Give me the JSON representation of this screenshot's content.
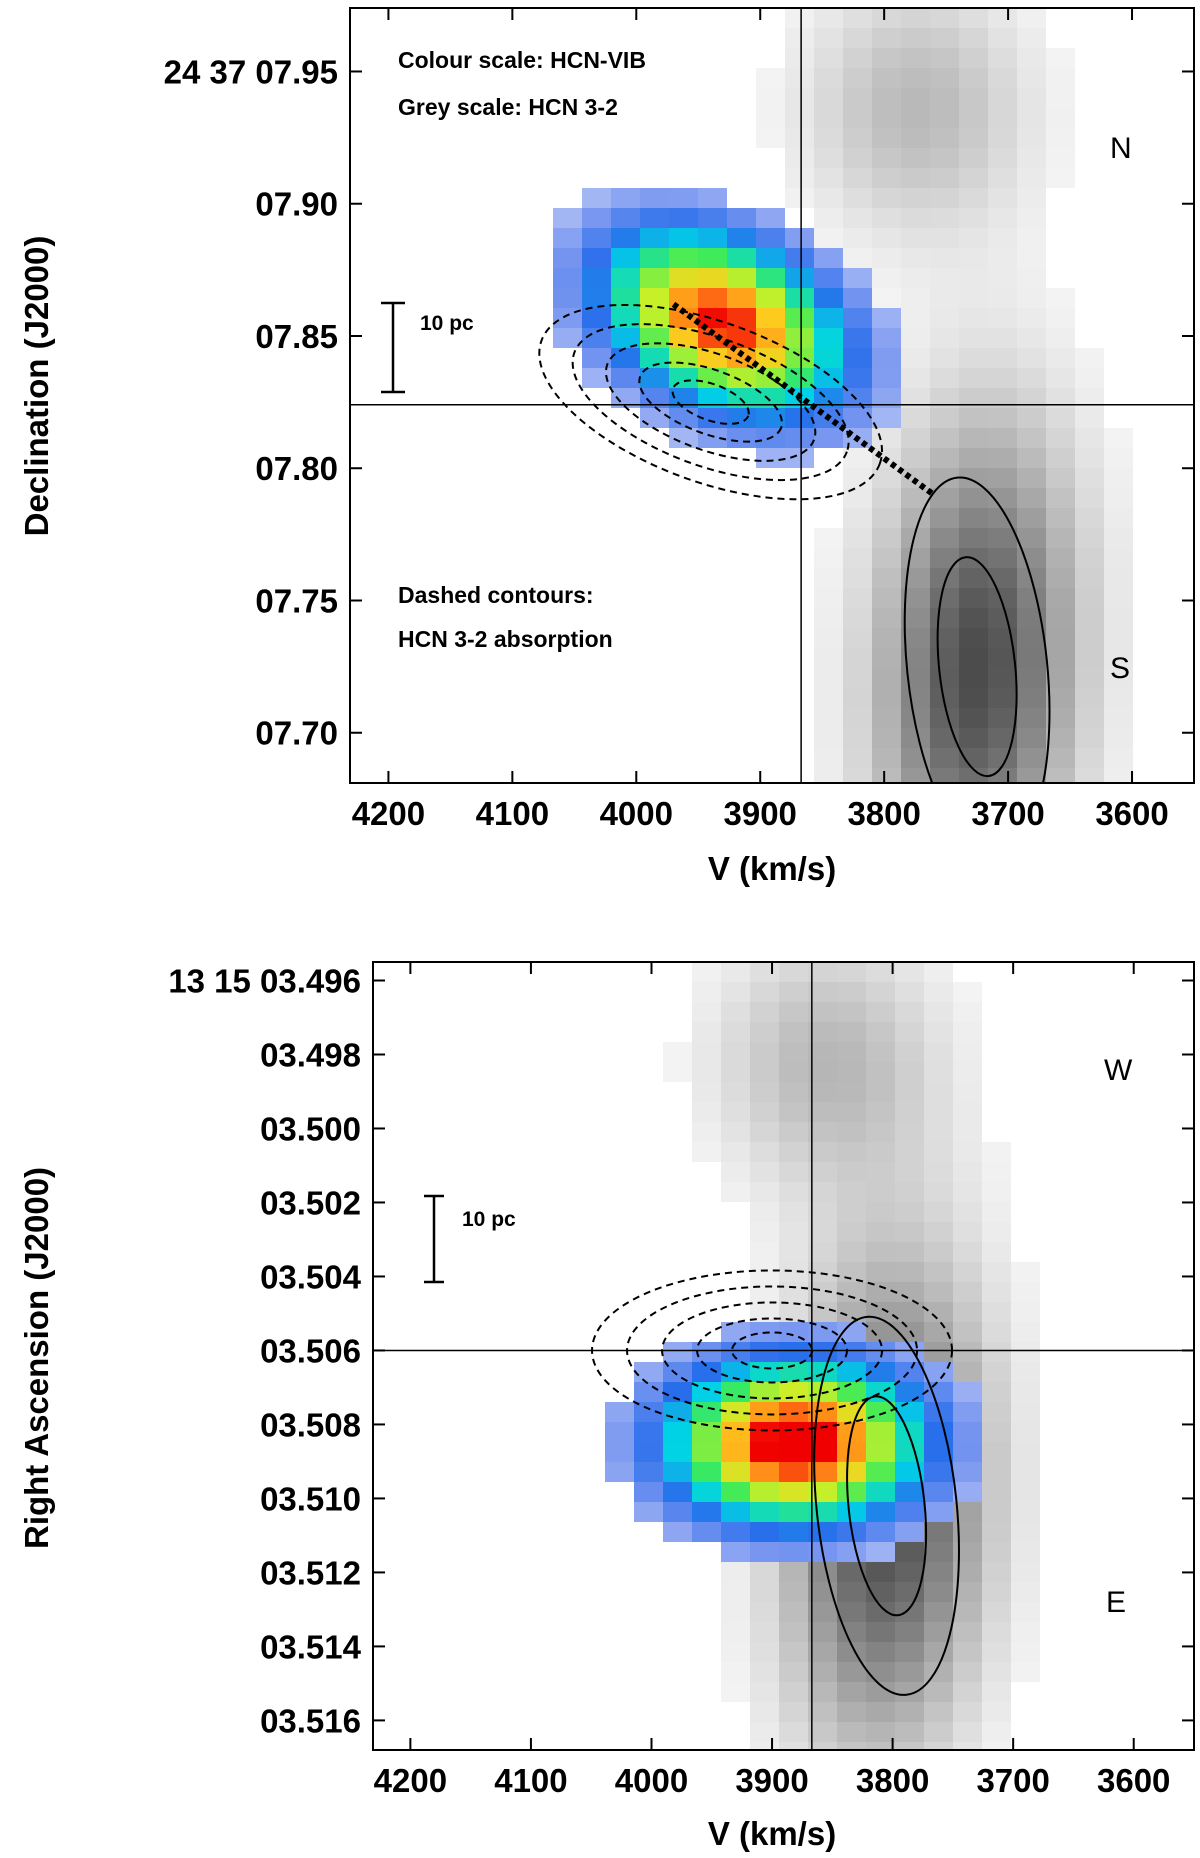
{
  "chart_data": [
    {
      "type": "heatmap",
      "panel": "top",
      "xlabel": "V (km/s)",
      "ylabel": "Declination (J2000)",
      "x_ticks": [
        4200,
        4100,
        4000,
        3900,
        3800,
        3700,
        3600
      ],
      "x_tick_labels": [
        "4200",
        "4100",
        "4000",
        "3900",
        "3800",
        "3700",
        "3600"
      ],
      "xlim": [
        4231,
        3550
      ],
      "y_ticks": [
        7.95,
        7.9,
        7.85,
        7.8,
        7.75,
        7.7
      ],
      "y_tick_labels": [
        "24 37 07.95",
        "07.90",
        "07.85",
        "07.80",
        "07.75",
        "07.70"
      ],
      "ylim": [
        7.681,
        7.974
      ],
      "crosshair": {
        "x": 3867,
        "y": 7.824
      },
      "annotations": {
        "colour": "Colour scale: HCN-VIB",
        "grey": "Grey scale: HCN 3-2",
        "dashed_1": "Dashed contours:",
        "dashed_2": "HCN 3-2 absorption",
        "north": "N",
        "south": "S",
        "scale_bar": "10 pc"
      },
      "hcn_vib_peak": {
        "x": 3930,
        "y": 7.855
      },
      "hcn_32_peak": {
        "x": 3725,
        "y": 7.725
      },
      "absorption_center": {
        "x": 3940,
        "y": 7.825
      },
      "dotted_axis": {
        "from": [
          3970,
          7.862
        ],
        "to": [
          3760,
          7.79
        ]
      }
    },
    {
      "type": "heatmap",
      "panel": "bottom",
      "xlabel": "V (km/s)",
      "ylabel": "Right Ascension (J2000)",
      "x_ticks": [
        4200,
        4100,
        4000,
        3900,
        3800,
        3700,
        3600
      ],
      "x_tick_labels": [
        "4200",
        "4100",
        "4000",
        "3900",
        "3800",
        "3700",
        "3600"
      ],
      "xlim": [
        4231,
        3550
      ],
      "y_ticks": [
        3.496,
        3.498,
        3.5,
        3.502,
        3.504,
        3.506,
        3.508,
        3.51,
        3.512,
        3.514,
        3.516
      ],
      "y_tick_labels": [
        "13 15 03.496",
        "03.498",
        "03.500",
        "03.502",
        "03.504",
        "03.506",
        "03.508",
        "03.510",
        "03.512",
        "03.514",
        "03.516"
      ],
      "ylim": [
        3.4955,
        3.5168
      ],
      "crosshair": {
        "x": 3867,
        "y": 3.506
      },
      "annotations": {
        "west": "W",
        "east": "E",
        "scale_bar": "10 pc"
      },
      "hcn_vib_peak": {
        "x": 3880,
        "y": 3.5085
      },
      "hcn_32_peak": {
        "x": 3805,
        "y": 3.5102
      },
      "absorption_center": {
        "x": 3900,
        "y": 3.506
      }
    }
  ]
}
